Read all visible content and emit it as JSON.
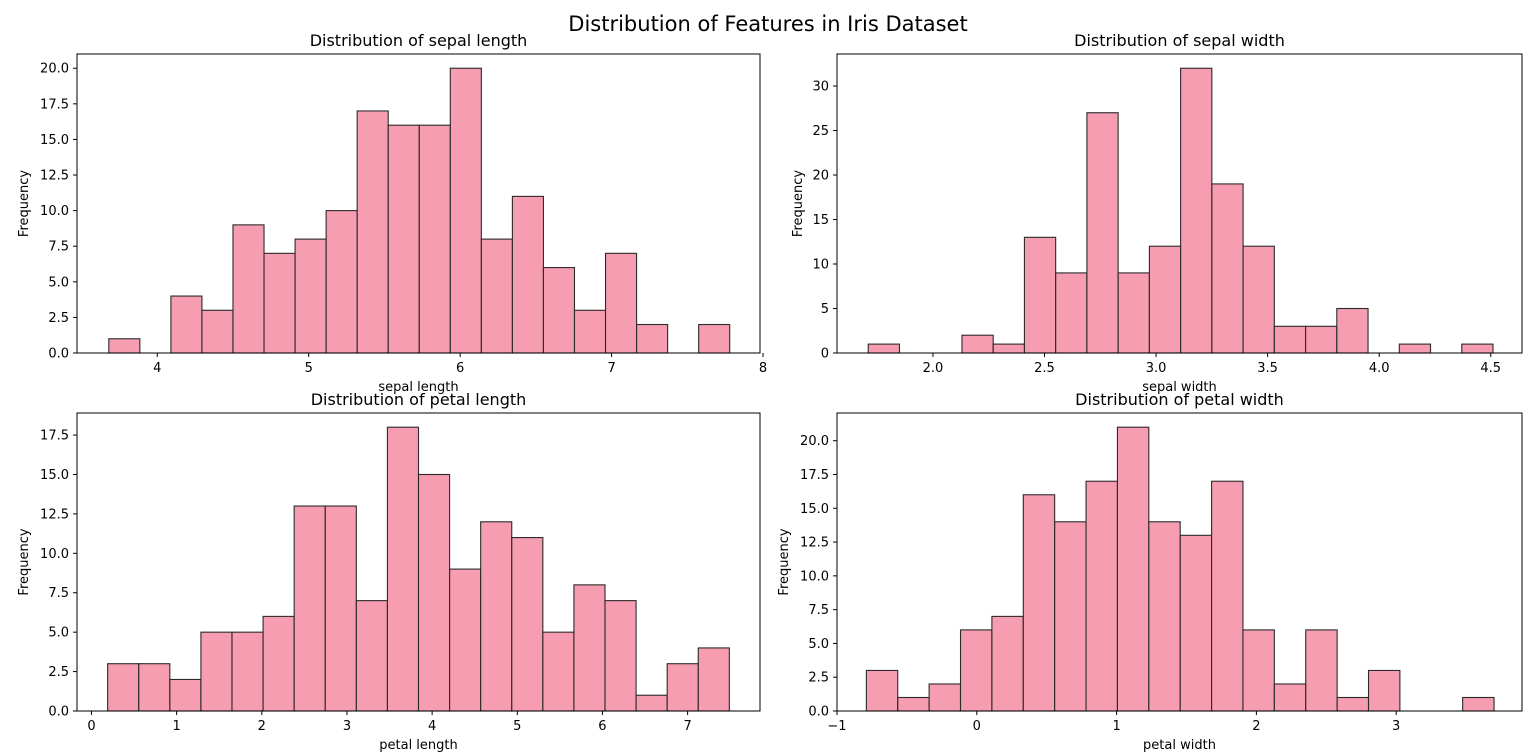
{
  "figure": {
    "suptitle": "Distribution of Features in Iris Dataset"
  },
  "colors": {
    "bar_fill": "#f4829b",
    "bar_edge": "#2b2b2b",
    "axes": "#000000"
  },
  "chart_data": [
    {
      "type": "bar",
      "title": "Distribution of sepal length",
      "xlabel": "sepal length",
      "ylabel": "Frequency",
      "xlim": [
        3.47,
        7.98
      ],
      "ylim": [
        0,
        21
      ],
      "xticks": [
        4,
        5,
        6,
        7,
        8
      ],
      "xtick_labels": [
        "4",
        "5",
        "6",
        "7",
        "8"
      ],
      "yticks": [
        0,
        2.5,
        5,
        7.5,
        10,
        12.5,
        15,
        17.5,
        20
      ],
      "ytick_labels": [
        "0.0",
        "2.5",
        "5.0",
        "7.5",
        "10.0",
        "12.5",
        "15.0",
        "17.5",
        "20.0"
      ],
      "bin_start": 3.68,
      "bin_width": 0.205,
      "values": [
        1,
        0,
        4,
        3,
        9,
        7,
        8,
        10,
        17,
        16,
        16,
        20,
        8,
        11,
        6,
        3,
        7,
        2,
        0,
        2
      ]
    },
    {
      "type": "bar",
      "title": "Distribution of sepal width",
      "xlabel": "sepal width",
      "ylabel": "Frequency",
      "xlim": [
        1.57,
        4.64
      ],
      "ylim": [
        0,
        33.6
      ],
      "xticks": [
        2.0,
        2.5,
        3.0,
        3.5,
        4.0,
        4.5
      ],
      "xtick_labels": [
        "2.0",
        "2.5",
        "3.0",
        "3.5",
        "4.0",
        "4.5"
      ],
      "yticks": [
        0,
        5,
        10,
        15,
        20,
        25,
        30
      ],
      "ytick_labels": [
        "0",
        "5",
        "10",
        "15",
        "20",
        "25",
        "30"
      ],
      "bin_start": 1.71,
      "bin_width": 0.14,
      "values": [
        1,
        0,
        0,
        2,
        1,
        13,
        9,
        27,
        9,
        12,
        32,
        19,
        12,
        3,
        3,
        5,
        0,
        1,
        0,
        1
      ]
    },
    {
      "type": "bar",
      "title": "Distribution of petal length",
      "xlabel": "petal length",
      "ylabel": "Frequency",
      "xlim": [
        -0.17,
        7.85
      ],
      "ylim": [
        0,
        18.9
      ],
      "xticks": [
        0,
        1,
        2,
        3,
        4,
        5,
        6,
        7
      ],
      "xtick_labels": [
        "0",
        "1",
        "2",
        "3",
        "4",
        "5",
        "6",
        "7"
      ],
      "yticks": [
        0,
        2.5,
        5,
        7.5,
        10,
        12.5,
        15,
        17.5
      ],
      "ytick_labels": [
        "0.0",
        "2.5",
        "5.0",
        "7.5",
        "10.0",
        "12.5",
        "15.0",
        "17.5"
      ],
      "bin_start": 0.19,
      "bin_width": 0.365,
      "values": [
        3,
        3,
        2,
        5,
        5,
        6,
        13,
        13,
        7,
        18,
        15,
        9,
        12,
        11,
        5,
        8,
        7,
        1,
        3,
        4
      ]
    },
    {
      "type": "bar",
      "title": "Distribution of petal width",
      "xlabel": "petal width",
      "ylabel": "Frequency",
      "xlim": [
        -1.0,
        3.9
      ],
      "ylim": [
        0,
        22.05
      ],
      "xticks": [
        -1,
        0,
        1,
        2,
        3
      ],
      "xtick_labels": [
        "−1",
        "0",
        "1",
        "2",
        "3"
      ],
      "yticks": [
        0,
        2.5,
        5,
        7.5,
        10,
        12.5,
        15,
        17.5,
        20
      ],
      "ytick_labels": [
        "0.0",
        "2.5",
        "5.0",
        "7.5",
        "10.0",
        "12.5",
        "15.0",
        "17.5",
        "20.0"
      ],
      "bin_start": -0.79,
      "bin_width": 0.2245,
      "values": [
        3,
        1,
        2,
        6,
        7,
        16,
        14,
        17,
        21,
        14,
        13,
        17,
        6,
        2,
        6,
        1,
        3,
        0,
        0,
        1
      ]
    }
  ]
}
